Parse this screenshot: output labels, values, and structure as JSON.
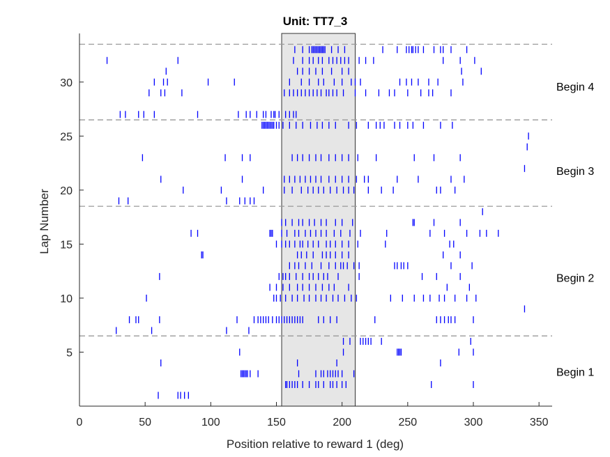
{
  "chart_data": {
    "type": "scatter",
    "title": "Unit: TT7_3",
    "xlabel": "Position relative to reward 1 (deg)",
    "ylabel": "Lap Number",
    "xlim": [
      0,
      360
    ],
    "ylim": [
      0,
      34.5
    ],
    "x_ticks": [
      "0",
      "50",
      "100",
      "150",
      "200",
      "250",
      "300",
      "350"
    ],
    "y_ticks": [
      "5",
      "10",
      "15",
      "20",
      "25",
      "30"
    ],
    "grid": false,
    "reward_zone": [
      154,
      210
    ],
    "reward_zone_color": "#e6e6e6",
    "spike_color": "#0000ff",
    "separator_color": "#999999",
    "lap_boundaries": [
      6.5,
      18.5,
      26.5,
      33.5
    ],
    "block_labels": [
      {
        "text": "Begin 1",
        "lap": 3.2
      },
      {
        "text": "Begin 2",
        "lap": 11.9
      },
      {
        "text": "Begin 3",
        "lap": 21.8
      },
      {
        "text": "Begin 4",
        "lap": 29.6
      }
    ],
    "laps": [
      {
        "lap": 1,
        "x": [
          60,
          75,
          77,
          80,
          83
        ]
      },
      {
        "lap": 2,
        "x": [
          157,
          158,
          160,
          162,
          164,
          166,
          170,
          175,
          180,
          182,
          186,
          191,
          193,
          196,
          200,
          203,
          268,
          300
        ]
      },
      {
        "lap": 3,
        "x": [
          123,
          124,
          125,
          126,
          127,
          128,
          130,
          136,
          167,
          180,
          184,
          186,
          189,
          191,
          193,
          195,
          197,
          200,
          209
        ]
      },
      {
        "lap": 4,
        "x": [
          62,
          166,
          196,
          275
        ]
      },
      {
        "lap": 5,
        "x": [
          122,
          201,
          242,
          243,
          244,
          245,
          289,
          300
        ]
      },
      {
        "lap": 6,
        "x": [
          201,
          206,
          214,
          216,
          218,
          220,
          222,
          230,
          298
        ]
      },
      {
        "lap": 7,
        "x": [
          28,
          55,
          112,
          129
        ]
      },
      {
        "lap": 8,
        "x": [
          38,
          43,
          45,
          61,
          120,
          133,
          136,
          138,
          140,
          142,
          144,
          147,
          150,
          152,
          154,
          156,
          158,
          160,
          162,
          164,
          166,
          168,
          170,
          182,
          186,
          191,
          196,
          225,
          272,
          275,
          278,
          281,
          283,
          286,
          300
        ]
      },
      {
        "lap": 9,
        "x": [
          339
        ]
      },
      {
        "lap": 10,
        "x": [
          51,
          148,
          150,
          153,
          157,
          162,
          166,
          171,
          175,
          180,
          184,
          188,
          193,
          197,
          202,
          207,
          211,
          237,
          246,
          255,
          262,
          267,
          274,
          278,
          286,
          295,
          302
        ]
      },
      {
        "lap": 11,
        "x": [
          145,
          150,
          155,
          160,
          166,
          170,
          175,
          180,
          185,
          190,
          194,
          205,
          280,
          297
        ]
      },
      {
        "lap": 12,
        "x": [
          61,
          152,
          155,
          157,
          160,
          165,
          170,
          175,
          178,
          182,
          186,
          189,
          197,
          213,
          261,
          272,
          290
        ]
      },
      {
        "lap": 13,
        "x": [
          160,
          164,
          167,
          172,
          177,
          184,
          190,
          195,
          199,
          201,
          204,
          209,
          213,
          240,
          242,
          245,
          247,
          250,
          283,
          299
        ]
      },
      {
        "lap": 14,
        "x": [
          93,
          94,
          166,
          169,
          173,
          178,
          185,
          188,
          191,
          195,
          200,
          205,
          277,
          290
        ]
      },
      {
        "lap": 15,
        "x": [
          150,
          154,
          157,
          160,
          164,
          168,
          170,
          174,
          178,
          182,
          188,
          191,
          195,
          200,
          205,
          212,
          233,
          282,
          285
        ]
      },
      {
        "lap": 16,
        "x": [
          85,
          90,
          145,
          146,
          147,
          154,
          158,
          164,
          167,
          172,
          176,
          180,
          184,
          188,
          194,
          199,
          206,
          214,
          234,
          267,
          278,
          295,
          305,
          310,
          319
        ]
      },
      {
        "lap": 17,
        "x": [
          154,
          157,
          162,
          167,
          170,
          175,
          179,
          184,
          188,
          195,
          200,
          208,
          254,
          255,
          270,
          290
        ]
      },
      {
        "lap": 18,
        "x": [
          307
        ]
      },
      {
        "lap": 19,
        "x": [
          30,
          37,
          112,
          122,
          126,
          130,
          133
        ]
      },
      {
        "lap": 20,
        "x": [
          79,
          108,
          140,
          156,
          162,
          169,
          174,
          178,
          182,
          186,
          191,
          196,
          201,
          205,
          209,
          220,
          230,
          239,
          272,
          275,
          286
        ]
      },
      {
        "lap": 21,
        "x": [
          62,
          124,
          156,
          160,
          164,
          168,
          172,
          176,
          180,
          184,
          190,
          195,
          200,
          205,
          211,
          217,
          220,
          242,
          258,
          283,
          293
        ]
      },
      {
        "lap": 22,
        "x": [
          339
        ]
      },
      {
        "lap": 23,
        "x": [
          48,
          111,
          124,
          130,
          162,
          166,
          170,
          175,
          180,
          184,
          190,
          195,
          200,
          205,
          212,
          226,
          255,
          270,
          290
        ]
      },
      {
        "lap": 24,
        "x": [
          341
        ]
      },
      {
        "lap": 25,
        "x": [
          342
        ]
      },
      {
        "lap": 26,
        "x": [
          139,
          140,
          141,
          142,
          143,
          144,
          145,
          146,
          147,
          148,
          150,
          152,
          155,
          160,
          165,
          170,
          176,
          181,
          185,
          190,
          195,
          205,
          211,
          220,
          226,
          229,
          232,
          240,
          244,
          250,
          254,
          262,
          275,
          284
        ]
      },
      {
        "lap": 27,
        "x": [
          31,
          35,
          45,
          49,
          57,
          90,
          121,
          127,
          130,
          135,
          140,
          142,
          146,
          148,
          149,
          152,
          157,
          160,
          163,
          165
        ]
      },
      {
        "lap": 28,
        "x": []
      },
      {
        "lap": 29,
        "x": [
          53,
          62,
          65,
          78,
          156,
          160,
          163,
          166,
          169,
          172,
          175,
          178,
          181,
          184,
          188,
          190,
          193,
          196,
          201,
          210,
          218,
          228,
          236,
          240,
          250,
          260,
          266,
          269,
          283
        ]
      },
      {
        "lap": 30,
        "x": [
          57,
          64,
          67,
          98,
          118,
          160,
          169,
          175,
          182,
          186,
          194,
          200,
          207,
          210,
          214,
          244,
          249,
          253,
          258,
          266,
          273,
          292
        ]
      },
      {
        "lap": 31,
        "x": [
          66,
          166,
          170,
          175,
          180,
          185,
          192,
          200,
          205,
          291,
          306
        ]
      },
      {
        "lap": 32,
        "x": [
          21,
          75,
          163,
          170,
          175,
          178,
          182,
          185,
          190,
          193,
          196,
          199,
          202,
          205,
          213,
          218,
          224,
          277,
          290,
          301
        ]
      },
      {
        "lap": 33,
        "x": [
          164,
          170,
          175,
          177,
          178,
          179,
          180,
          181,
          182,
          183,
          184,
          185,
          186,
          187,
          192,
          197,
          202,
          231,
          242,
          249,
          251,
          253,
          254,
          256,
          258,
          262,
          270,
          275,
          277,
          283,
          295
        ]
      }
    ]
  }
}
